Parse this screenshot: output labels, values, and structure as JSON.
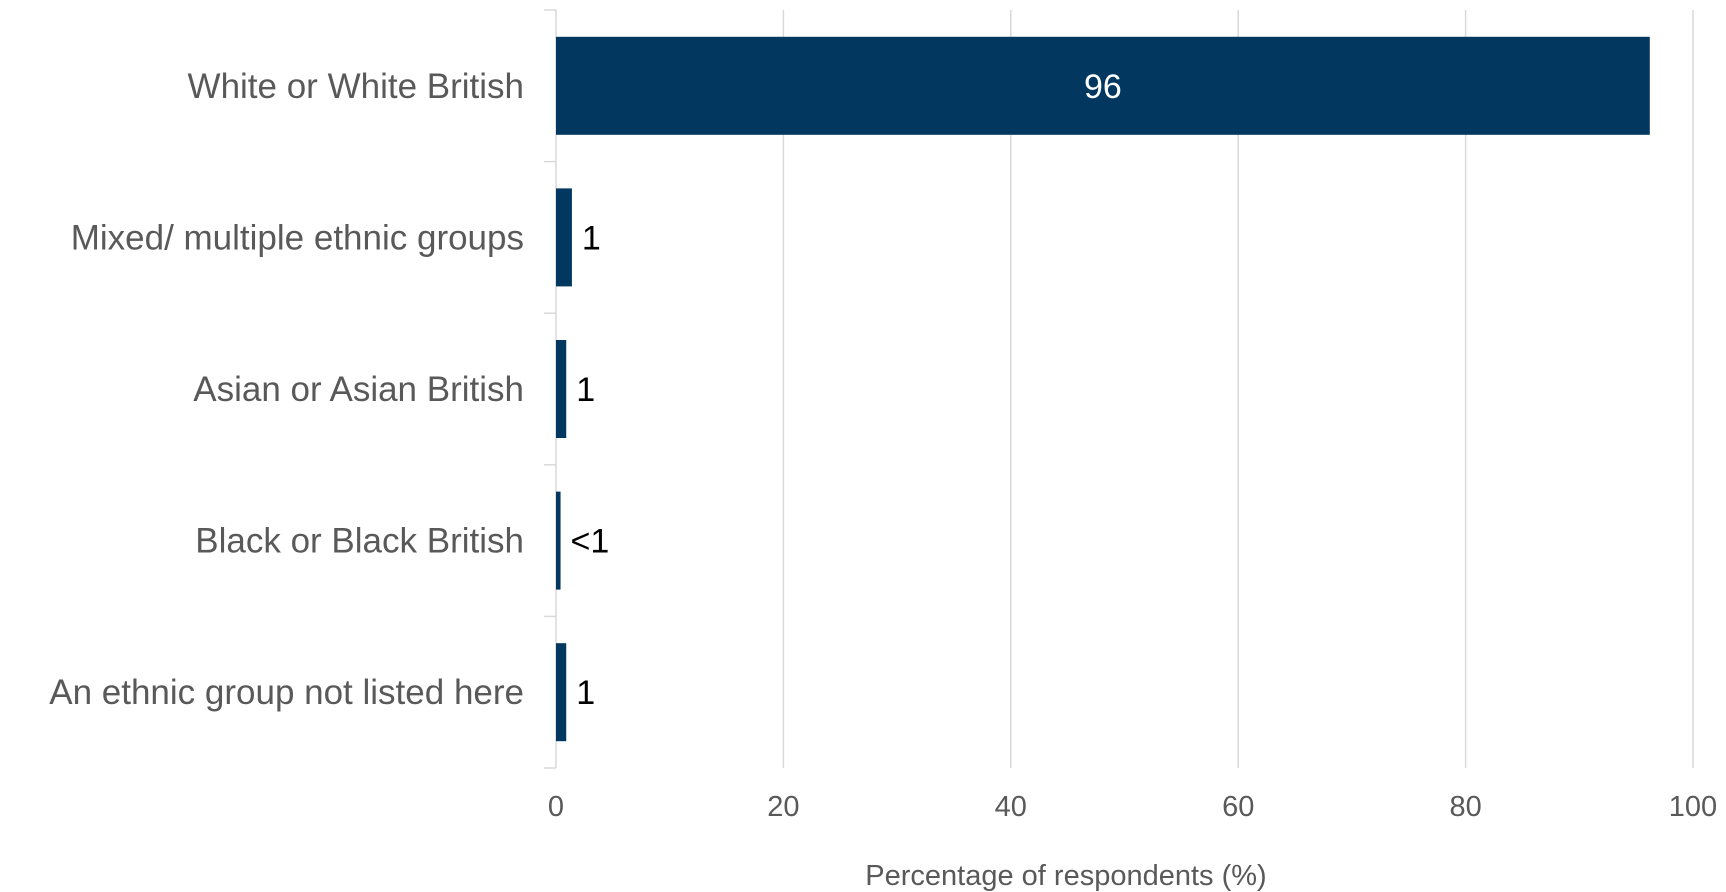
{
  "chart_data": {
    "type": "bar",
    "orientation": "horizontal",
    "categories": [
      "White or White British",
      "Mixed/ multiple ethnic groups",
      "Asian or Asian British",
      "Black or Black British",
      "An ethnic group not listed here"
    ],
    "values": [
      96.2,
      1.4,
      0.9,
      0.4,
      0.9
    ],
    "data_labels": [
      "96",
      "1",
      "1",
      "<1",
      "1"
    ],
    "xlabel": "Percentage of respondents (%)",
    "ylabel": "",
    "xlim": [
      0,
      100
    ],
    "xticks": [
      0,
      20,
      40,
      60,
      80,
      100
    ],
    "grid": "vertical",
    "legend": "none",
    "colors": {
      "bar": "#02375f",
      "grid": "#d9d9d9",
      "text": "#595959",
      "label_inside": "#ffffff",
      "label_outside": "#000000"
    }
  }
}
